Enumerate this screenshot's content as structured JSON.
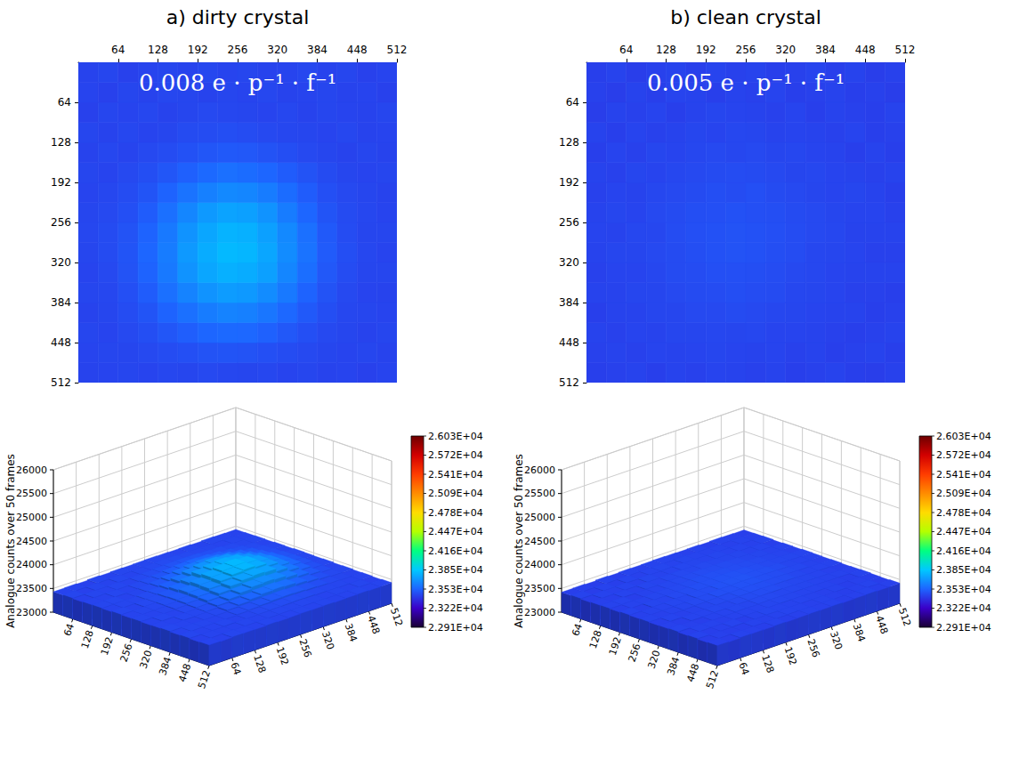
{
  "chart_data": [
    {
      "type": "heatmap",
      "title": "a) dirty crystal",
      "annotation": "0.008 e · p⁻¹ · f⁻¹",
      "xlim": [
        0,
        512
      ],
      "xticks": [
        64,
        128,
        192,
        256,
        320,
        384,
        448,
        512
      ],
      "ylim": [
        0,
        512
      ],
      "yticks": [
        64,
        128,
        192,
        256,
        320,
        384,
        448,
        512
      ],
      "cells": {
        "x_bins": [
          0,
          32,
          64,
          96,
          128,
          160,
          192,
          224,
          256,
          288,
          320,
          352,
          384,
          416,
          448,
          480,
          512
        ],
        "y_bins": [
          0,
          32,
          64,
          96,
          128,
          160,
          192,
          224,
          256,
          288,
          320,
          352,
          384,
          416,
          448,
          480,
          512
        ],
        "values": [
          [
            23430,
            23440,
            23425,
            23435,
            23440,
            23430,
            23445,
            23435,
            23440,
            23430,
            23435,
            23445,
            23430,
            23440,
            23425,
            23435
          ],
          [
            23435,
            23425,
            23440,
            23430,
            23445,
            23440,
            23430,
            23440,
            23435,
            23445,
            23430,
            23435,
            23440,
            23430,
            23435,
            23425
          ],
          [
            23425,
            23440,
            23435,
            23445,
            23430,
            23440,
            23450,
            23445,
            23440,
            23435,
            23445,
            23430,
            23440,
            23435,
            23430,
            23440
          ],
          [
            23440,
            23430,
            23445,
            23435,
            23440,
            23455,
            23460,
            23465,
            23460,
            23450,
            23445,
            23440,
            23435,
            23445,
            23430,
            23435
          ],
          [
            23430,
            23445,
            23435,
            23450,
            23460,
            23475,
            23490,
            23500,
            23495,
            23480,
            23465,
            23450,
            23440,
            23430,
            23440,
            23430
          ],
          [
            23440,
            23435,
            23450,
            23465,
            23490,
            23520,
            23550,
            23570,
            23560,
            23540,
            23510,
            23480,
            23455,
            23440,
            23435,
            23440
          ],
          [
            23435,
            23445,
            23460,
            23485,
            23530,
            23580,
            23620,
            23650,
            23640,
            23610,
            23560,
            23510,
            23470,
            23450,
            23440,
            23430
          ],
          [
            23440,
            23450,
            23470,
            23510,
            23570,
            23640,
            23700,
            23730,
            23720,
            23680,
            23610,
            23540,
            23485,
            23455,
            23445,
            23435
          ],
          [
            23445,
            23455,
            23480,
            23530,
            23600,
            23680,
            23740,
            23780,
            23770,
            23720,
            23650,
            23570,
            23500,
            23460,
            23440,
            23440
          ],
          [
            23440,
            23455,
            23485,
            23540,
            23610,
            23700,
            23760,
            23800,
            23790,
            23740,
            23660,
            23580,
            23505,
            23465,
            23445,
            23435
          ],
          [
            23435,
            23450,
            23480,
            23530,
            23600,
            23680,
            23740,
            23770,
            23760,
            23720,
            23640,
            23565,
            23495,
            23460,
            23440,
            23440
          ],
          [
            23440,
            23445,
            23470,
            23510,
            23570,
            23630,
            23680,
            23710,
            23700,
            23660,
            23600,
            23530,
            23480,
            23450,
            23435,
            23430
          ],
          [
            23430,
            23440,
            23460,
            23485,
            23530,
            23570,
            23610,
            23630,
            23620,
            23590,
            23545,
            23500,
            23465,
            23445,
            23440,
            23435
          ],
          [
            23440,
            23435,
            23450,
            23465,
            23490,
            23515,
            23540,
            23550,
            23545,
            23525,
            23495,
            23470,
            23450,
            23440,
            23430,
            23440
          ],
          [
            23435,
            23440,
            23440,
            23450,
            23460,
            23470,
            23480,
            23485,
            23480,
            23470,
            23460,
            23450,
            23440,
            23435,
            23440,
            23430
          ],
          [
            23430,
            23435,
            23440,
            23435,
            23445,
            23440,
            23450,
            23445,
            23440,
            23445,
            23435,
            23440,
            23430,
            23435,
            23425,
            23435
          ]
        ]
      },
      "colorbar": {
        "range": [
          22910,
          26030
        ],
        "ticks": [
          {
            "value": 22910,
            "label": "2.291E+04"
          },
          {
            "value": 23222,
            "label": "2.322E+04"
          },
          {
            "value": 23534,
            "label": "2.353E+04"
          },
          {
            "value": 23846,
            "label": "2.385E+04"
          },
          {
            "value": 24158,
            "label": "2.416E+04"
          },
          {
            "value": 24470,
            "label": "2.447E+04"
          },
          {
            "value": 24782,
            "label": "2.478E+04"
          },
          {
            "value": 25094,
            "label": "2.509E+04"
          },
          {
            "value": 25406,
            "label": "2.541E+04"
          },
          {
            "value": 25718,
            "label": "2.572E+04"
          },
          {
            "value": 26030,
            "label": "2.603E+04"
          }
        ]
      },
      "surface": {
        "type": "surface",
        "zlabel": "Analogue counts over 50 frames",
        "zlim": [
          23000,
          26000
        ],
        "zticks": [
          23000,
          23500,
          24000,
          24500,
          25000,
          25500,
          26000
        ],
        "xticks": [
          64,
          128,
          192,
          256,
          320,
          384,
          448,
          512
        ],
        "yticks": [
          64,
          128,
          192,
          256,
          320,
          384,
          448,
          512
        ]
      }
    },
    {
      "type": "heatmap",
      "title": "b) clean crystal",
      "annotation": "0.005 e · p⁻¹ · f⁻¹",
      "xlim": [
        0,
        512
      ],
      "xticks": [
        64,
        128,
        192,
        256,
        320,
        384,
        448,
        512
      ],
      "ylim": [
        0,
        512
      ],
      "yticks": [
        64,
        128,
        192,
        256,
        320,
        384,
        448,
        512
      ],
      "cells": {
        "x_bins": [
          0,
          32,
          64,
          96,
          128,
          160,
          192,
          224,
          256,
          288,
          320,
          352,
          384,
          416,
          448,
          480,
          512
        ],
        "y_bins": [
          0,
          32,
          64,
          96,
          128,
          160,
          192,
          224,
          256,
          288,
          320,
          352,
          384,
          416,
          448,
          480,
          512
        ],
        "values": [
          [
            23420,
            23430,
            23415,
            23425,
            23430,
            23420,
            23435,
            23425,
            23430,
            23420,
            23425,
            23435,
            23420,
            23430,
            23415,
            23425
          ],
          [
            23425,
            23415,
            23430,
            23420,
            23435,
            23430,
            23420,
            23430,
            23425,
            23435,
            23420,
            23425,
            23430,
            23420,
            23425,
            23415
          ],
          [
            23415,
            23430,
            23425,
            23435,
            23420,
            23430,
            23440,
            23435,
            23430,
            23425,
            23435,
            23420,
            23430,
            23425,
            23420,
            23430
          ],
          [
            23430,
            23420,
            23435,
            23425,
            23430,
            23440,
            23435,
            23445,
            23440,
            23430,
            23435,
            23430,
            23425,
            23435,
            23420,
            23425
          ],
          [
            23420,
            23435,
            23425,
            23440,
            23435,
            23445,
            23450,
            23445,
            23450,
            23440,
            23445,
            23435,
            23430,
            23420,
            23430,
            23420
          ],
          [
            23430,
            23425,
            23440,
            23435,
            23445,
            23450,
            23455,
            23460,
            23455,
            23450,
            23440,
            23445,
            23435,
            23430,
            23425,
            23430
          ],
          [
            23425,
            23435,
            23430,
            23445,
            23450,
            23455,
            23465,
            23460,
            23470,
            23455,
            23450,
            23440,
            23435,
            23440,
            23430,
            23420
          ],
          [
            23430,
            23440,
            23435,
            23450,
            23455,
            23465,
            23470,
            23475,
            23470,
            23465,
            23455,
            23450,
            23440,
            23435,
            23435,
            23425
          ],
          [
            23435,
            23430,
            23445,
            23445,
            23460,
            23470,
            23475,
            23480,
            23475,
            23470,
            23460,
            23450,
            23445,
            23430,
            23430,
            23430
          ],
          [
            23430,
            23440,
            23440,
            23450,
            23455,
            23465,
            23475,
            23480,
            23475,
            23465,
            23460,
            23445,
            23440,
            23435,
            23425,
            23425
          ],
          [
            23425,
            23435,
            23435,
            23445,
            23455,
            23460,
            23470,
            23470,
            23465,
            23460,
            23450,
            23445,
            23435,
            23430,
            23430,
            23430
          ],
          [
            23430,
            23430,
            23440,
            23440,
            23450,
            23455,
            23460,
            23465,
            23460,
            23455,
            23445,
            23440,
            23435,
            23425,
            23425,
            23420
          ],
          [
            23420,
            23430,
            23430,
            23440,
            23440,
            23450,
            23450,
            23455,
            23450,
            23445,
            23440,
            23435,
            23430,
            23430,
            23420,
            23425
          ],
          [
            23430,
            23425,
            23435,
            23430,
            23440,
            23440,
            23445,
            23440,
            23445,
            23435,
            23435,
            23430,
            23425,
            23420,
            23425,
            23430
          ],
          [
            23425,
            23430,
            23425,
            23435,
            23430,
            23435,
            23440,
            23435,
            23430,
            23435,
            23425,
            23430,
            23420,
            23425,
            23430,
            23420
          ],
          [
            23420,
            23425,
            23430,
            23420,
            23430,
            23425,
            23435,
            23430,
            23425,
            23430,
            23420,
            23425,
            23430,
            23420,
            23415,
            23425
          ]
        ]
      },
      "colorbar": {
        "range": [
          22910,
          26030
        ],
        "ticks": [
          {
            "value": 22910,
            "label": "2.291E+04"
          },
          {
            "value": 23222,
            "label": "2.322E+04"
          },
          {
            "value": 23534,
            "label": "2.353E+04"
          },
          {
            "value": 23846,
            "label": "2.385E+04"
          },
          {
            "value": 24158,
            "label": "2.416E+04"
          },
          {
            "value": 24470,
            "label": "2.447E+04"
          },
          {
            "value": 24782,
            "label": "2.478E+04"
          },
          {
            "value": 25094,
            "label": "2.509E+04"
          },
          {
            "value": 25406,
            "label": "2.541E+04"
          },
          {
            "value": 25718,
            "label": "2.572E+04"
          },
          {
            "value": 26030,
            "label": "2.603E+04"
          }
        ]
      },
      "surface": {
        "type": "surface",
        "zlabel": "Analogue counts over 50 frames",
        "zlim": [
          23000,
          26000
        ],
        "zticks": [
          23000,
          23500,
          24000,
          24500,
          25000,
          25500,
          26000
        ],
        "xticks": [
          64,
          128,
          192,
          256,
          320,
          384,
          448,
          512
        ],
        "yticks": [
          64,
          128,
          192,
          256,
          320,
          384,
          448,
          512
        ]
      }
    }
  ]
}
